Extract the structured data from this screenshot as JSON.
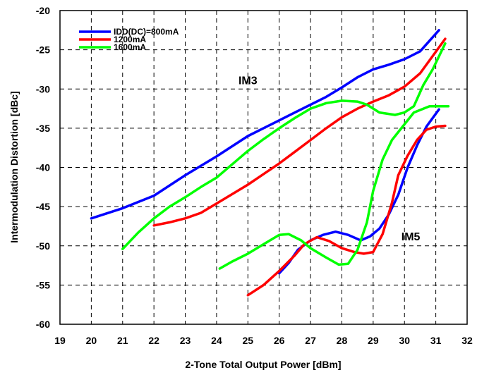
{
  "chart_data": {
    "type": "line",
    "title": "",
    "xlabel": "2-Tone Total Output Power  [dBm]",
    "ylabel": "Intermodulation Distortion  [dBc]",
    "xlim": [
      19,
      32
    ],
    "ylim": [
      -60,
      -20
    ],
    "x_ticks": [
      "19",
      "20",
      "21",
      "22",
      "23",
      "24",
      "25",
      "26",
      "27",
      "28",
      "29",
      "30",
      "31",
      "32"
    ],
    "y_ticks": [
      "-20",
      "-25",
      "-30",
      "-35",
      "-40",
      "-45",
      "-50",
      "-55",
      "-60"
    ],
    "grid": true,
    "legend_position": "top-left",
    "legend": [
      {
        "label": "IDD(DC)=800mA",
        "color": "#0000ff"
      },
      {
        "label": "1200mA",
        "color": "#ff0000"
      },
      {
        "label": "1600mA",
        "color": "#00ff00"
      }
    ],
    "annotations": [
      {
        "text": "IM3",
        "x": 24.7,
        "y": -29.4
      },
      {
        "text": "IM5",
        "x": 29.9,
        "y": -49.3
      }
    ],
    "series": [
      {
        "group": "IM3",
        "color": "#0000ff",
        "points": [
          [
            20,
            -46.5
          ],
          [
            21,
            -45.2
          ],
          [
            22,
            -43.6
          ],
          [
            23,
            -41.0
          ],
          [
            24,
            -38.6
          ],
          [
            25,
            -36.0
          ],
          [
            25.7,
            -34.6
          ],
          [
            26.5,
            -33.0
          ],
          [
            27.5,
            -31.0
          ],
          [
            28,
            -29.8
          ],
          [
            28.5,
            -28.5
          ],
          [
            29,
            -27.5
          ],
          [
            29.5,
            -26.9
          ],
          [
            30,
            -26.2
          ],
          [
            30.5,
            -25.2
          ],
          [
            31.1,
            -22.5
          ]
        ]
      },
      {
        "group": "IM3",
        "color": "#ff0000",
        "points": [
          [
            22,
            -47.4
          ],
          [
            22.5,
            -47.0
          ],
          [
            23,
            -46.5
          ],
          [
            23.5,
            -45.8
          ],
          [
            24,
            -44.6
          ],
          [
            25,
            -42.2
          ],
          [
            26,
            -39.5
          ],
          [
            26.5,
            -38.0
          ],
          [
            27,
            -36.5
          ],
          [
            27.5,
            -35.0
          ],
          [
            28,
            -33.6
          ],
          [
            28.5,
            -32.5
          ],
          [
            29,
            -31.6
          ],
          [
            29.5,
            -30.8
          ],
          [
            30,
            -29.7
          ],
          [
            30.5,
            -28.0
          ],
          [
            31.3,
            -23.6
          ]
        ]
      },
      {
        "group": "IM3",
        "color": "#00ff00",
        "points": [
          [
            21,
            -50.4
          ],
          [
            21.5,
            -48.3
          ],
          [
            22,
            -46.5
          ],
          [
            22.5,
            -45.0
          ],
          [
            23,
            -43.8
          ],
          [
            23.5,
            -42.5
          ],
          [
            24,
            -41.3
          ],
          [
            24.5,
            -39.6
          ],
          [
            25,
            -37.9
          ],
          [
            25.5,
            -36.4
          ],
          [
            26,
            -35.0
          ],
          [
            26.5,
            -33.7
          ],
          [
            27,
            -32.5
          ],
          [
            27.5,
            -31.8
          ],
          [
            28,
            -31.5
          ],
          [
            28.5,
            -31.6
          ],
          [
            28.8,
            -32.0
          ],
          [
            29.2,
            -33.0
          ],
          [
            29.7,
            -33.3
          ],
          [
            30,
            -33.0
          ],
          [
            30.3,
            -32.2
          ],
          [
            30.6,
            -29.5
          ],
          [
            30.9,
            -27.5
          ],
          [
            31.3,
            -24.2
          ]
        ]
      },
      {
        "group": "IM5",
        "color": "#0000ff",
        "points": [
          [
            26,
            -53.5
          ],
          [
            26.3,
            -52.2
          ],
          [
            26.6,
            -50.5
          ],
          [
            27,
            -49.3
          ],
          [
            27.4,
            -48.6
          ],
          [
            27.8,
            -48.2
          ],
          [
            28.2,
            -48.6
          ],
          [
            28.6,
            -49.3
          ],
          [
            28.9,
            -48.8
          ],
          [
            29.2,
            -47.8
          ],
          [
            29.5,
            -46.0
          ],
          [
            29.8,
            -43.5
          ],
          [
            30.1,
            -40.0
          ],
          [
            30.4,
            -37.2
          ],
          [
            30.7,
            -34.8
          ],
          [
            31.1,
            -32.6
          ]
        ]
      },
      {
        "group": "IM5",
        "color": "#ff0000",
        "points": [
          [
            25,
            -56.3
          ],
          [
            25.5,
            -55.0
          ],
          [
            26,
            -53.2
          ],
          [
            26.5,
            -51.2
          ],
          [
            26.8,
            -49.8
          ],
          [
            27.2,
            -48.9
          ],
          [
            27.6,
            -49.4
          ],
          [
            28,
            -50.3
          ],
          [
            28.4,
            -50.8
          ],
          [
            28.7,
            -51.0
          ],
          [
            29,
            -50.8
          ],
          [
            29.3,
            -48.5
          ],
          [
            29.6,
            -44.5
          ],
          [
            29.8,
            -41.0
          ],
          [
            30.1,
            -38.5
          ],
          [
            30.4,
            -36.5
          ],
          [
            30.7,
            -35.2
          ],
          [
            31.0,
            -34.8
          ],
          [
            31.3,
            -34.7
          ]
        ]
      },
      {
        "group": "IM5",
        "color": "#00ff00",
        "points": [
          [
            24.1,
            -52.9
          ],
          [
            24.5,
            -52.0
          ],
          [
            25,
            -51.0
          ],
          [
            25.5,
            -49.8
          ],
          [
            26,
            -48.6
          ],
          [
            26.3,
            -48.5
          ],
          [
            26.7,
            -49.3
          ],
          [
            27,
            -50.3
          ],
          [
            27.5,
            -51.5
          ],
          [
            27.9,
            -52.4
          ],
          [
            28.2,
            -52.3
          ],
          [
            28.5,
            -50.5
          ],
          [
            28.8,
            -47.0
          ],
          [
            29.0,
            -43.0
          ],
          [
            29.3,
            -39.0
          ],
          [
            29.6,
            -36.5
          ],
          [
            29.9,
            -35.0
          ],
          [
            30.3,
            -33.0
          ],
          [
            30.8,
            -32.2
          ],
          [
            31.4,
            -32.2
          ]
        ]
      }
    ]
  }
}
